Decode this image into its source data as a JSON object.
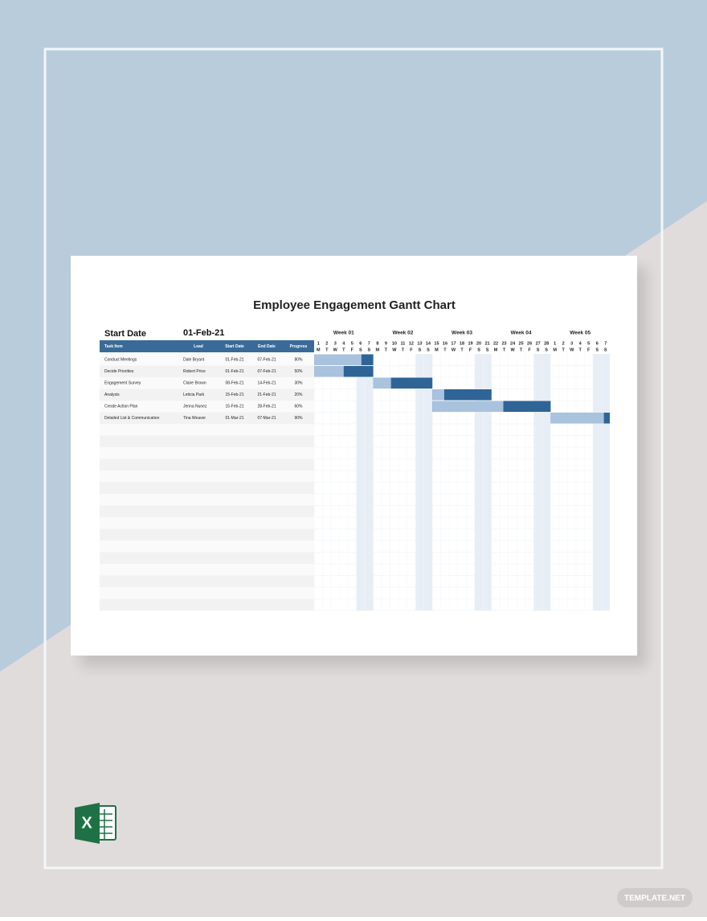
{
  "title": "Employee Engagement Gantt Chart",
  "start_date": {
    "label": "Start Date",
    "value": "01-Feb-21"
  },
  "table": {
    "headers": [
      "Task Item",
      "Lead",
      "Start Date",
      "End Date",
      "Progress"
    ],
    "rows": [
      [
        "Conduct Meetings",
        "Dale Bryant",
        "01-Feb-21",
        "07-Feb-21",
        "80%"
      ],
      [
        "Decide Priorities",
        "Robert Price",
        "01-Feb-21",
        "07-Feb-21",
        "50%"
      ],
      [
        "Engagement Survey",
        "Claire Brown",
        "08-Feb-21",
        "14-Feb-21",
        "30%"
      ],
      [
        "Analysis",
        "Leticia Park",
        "15-Feb-21",
        "21-Feb-21",
        "20%"
      ],
      [
        "Create Action Plan",
        "Jenna Nunez",
        "15-Feb-21",
        "28-Feb-21",
        "60%"
      ],
      [
        "Detailed List & Communication",
        "Tina Weaver",
        "01-Mar-21",
        "07-Mar-21",
        "90%"
      ]
    ]
  },
  "weeks": [
    "Week 01",
    "Week 02",
    "Week 03",
    "Week 04",
    "Week 05"
  ],
  "days": [
    1,
    2,
    3,
    4,
    5,
    6,
    7,
    8,
    9,
    10,
    11,
    12,
    13,
    14,
    15,
    16,
    17,
    18,
    19,
    20,
    21,
    22,
    23,
    24,
    25,
    26,
    27,
    28,
    1,
    2,
    3,
    4,
    5,
    6,
    7
  ],
  "weekdays": [
    "M",
    "T",
    "W",
    "T",
    "F",
    "S",
    "S"
  ],
  "watermark": "TEMPLATE.NET"
}
